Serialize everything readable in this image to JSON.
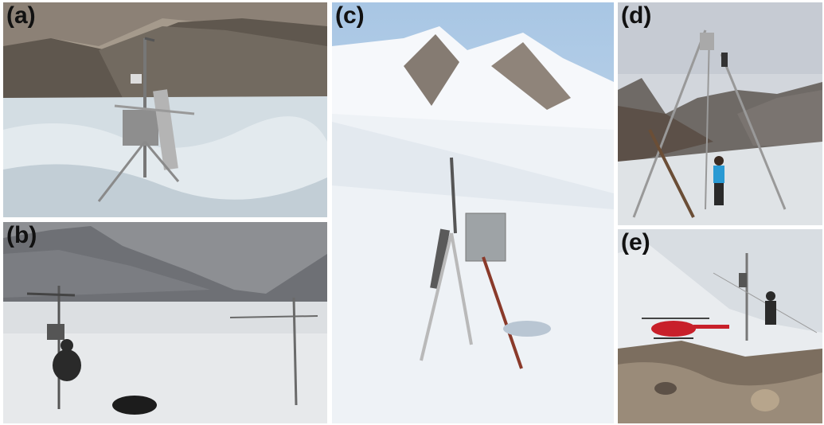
{
  "figure": {
    "panels": [
      {
        "label": "(a)"
      },
      {
        "label": "(b)"
      },
      {
        "label": "(c)"
      },
      {
        "label": "(d)"
      },
      {
        "label": "(e)"
      }
    ]
  },
  "colors": {
    "sky_clear": "#b9d3ea",
    "sky_overcast": "#8d8f93",
    "snow": "#eef2f6",
    "ice": "#cfd9e0",
    "rock": "#6b6257",
    "jacket_blue": "#2a9ad3",
    "helicopter_red": "#c8202a"
  }
}
